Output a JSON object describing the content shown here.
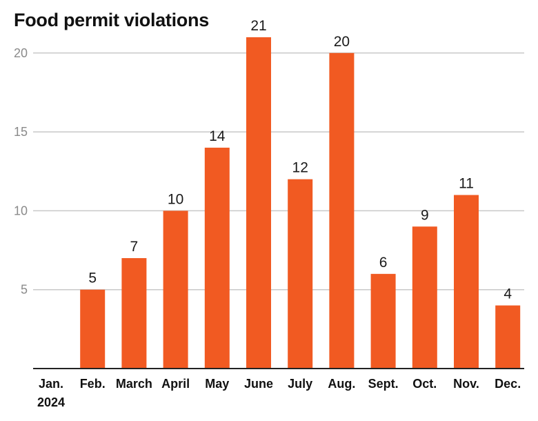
{
  "chart_data": {
    "type": "bar",
    "title": "Food permit violations",
    "categories": [
      "Jan.",
      "Feb.",
      "March",
      "April",
      "May",
      "June",
      "July",
      "Aug.",
      "Sept.",
      "Oct.",
      "Nov.",
      "Dec."
    ],
    "year_label": "2024",
    "values": [
      0,
      5,
      7,
      10,
      14,
      21,
      12,
      20,
      6,
      9,
      11,
      4
    ],
    "data_labels": [
      "",
      "5",
      "7",
      "10",
      "14",
      "21",
      "12",
      "20",
      "6",
      "9",
      "11",
      "4"
    ],
    "yticks": [
      5,
      10,
      15,
      20
    ],
    "ylim": [
      0,
      22
    ],
    "xlabel": "",
    "ylabel": "",
    "grid": true,
    "bar_color": "#f15a22",
    "gridline_color": "#c8c8c8"
  }
}
